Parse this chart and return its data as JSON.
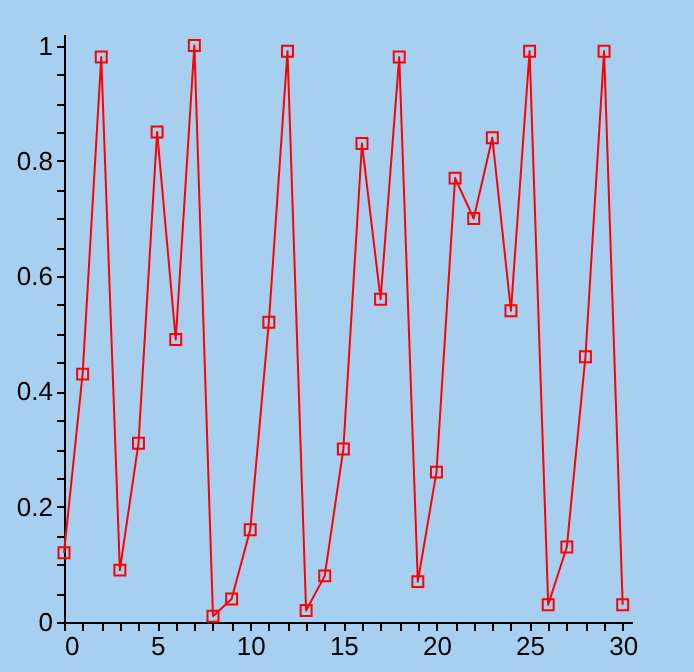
{
  "chart_data": {
    "type": "line",
    "x": [
      0,
      1,
      2,
      3,
      4,
      5,
      6,
      7,
      8,
      9,
      10,
      11,
      12,
      13,
      14,
      15,
      16,
      17,
      18,
      19,
      20,
      21,
      22,
      23,
      24,
      25,
      26,
      27,
      28,
      29,
      30
    ],
    "series": [
      {
        "color": "#ff0000",
        "values": [
          0.12,
          0.43,
          0.98,
          0.09,
          0.31,
          0.85,
          0.49,
          1.0,
          0.01,
          0.04,
          0.16,
          0.52,
          0.99,
          0.02,
          0.08,
          0.3,
          0.83,
          0.56,
          0.98,
          0.07,
          0.26,
          0.77,
          0.7,
          0.84,
          0.54,
          0.99,
          0.03,
          0.13,
          0.46,
          0.99,
          0.03
        ]
      }
    ],
    "xlim": [
      0,
      30.5
    ],
    "ylim": [
      0,
      1.02
    ],
    "xticks": [
      0,
      {
        "value": 1,
        "label": null
      },
      {
        "value": 2,
        "label": null
      },
      {
        "value": 3,
        "label": null
      },
      {
        "value": 4,
        "label": null
      },
      5,
      {
        "value": 6,
        "label": null
      },
      {
        "value": 7,
        "label": null
      },
      {
        "value": 8,
        "label": null
      },
      {
        "value": 9,
        "label": null
      },
      10,
      {
        "value": 11,
        "label": null
      },
      {
        "value": 12,
        "label": null
      },
      {
        "value": 13,
        "label": null
      },
      {
        "value": 14,
        "label": null
      },
      15,
      {
        "value": 16,
        "label": null
      },
      {
        "value": 17,
        "label": null
      },
      {
        "value": 18,
        "label": null
      },
      {
        "value": 19,
        "label": null
      },
      20,
      {
        "value": 21,
        "label": null
      },
      {
        "value": 22,
        "label": null
      },
      {
        "value": 23,
        "label": null
      },
      {
        "value": 24,
        "label": null
      },
      25,
      {
        "value": 26,
        "label": null
      },
      {
        "value": 27,
        "label": null
      },
      {
        "value": 28,
        "label": null
      },
      {
        "value": 29,
        "label": null
      },
      30
    ],
    "yticks": [
      0,
      {
        "value": 0.05,
        "label": null
      },
      {
        "value": 0.1,
        "label": null
      },
      {
        "value": 0.15,
        "label": null
      },
      0.2,
      {
        "value": 0.25,
        "label": null
      },
      {
        "value": 0.3,
        "label": null
      },
      {
        "value": 0.35,
        "label": null
      },
      0.4,
      {
        "value": 0.45,
        "label": null
      },
      {
        "value": 0.5,
        "label": null
      },
      {
        "value": 0.55,
        "label": null
      },
      0.6,
      {
        "value": 0.65,
        "label": null
      },
      {
        "value": 0.7,
        "label": null
      },
      {
        "value": 0.75,
        "label": null
      },
      0.8,
      {
        "value": 0.85,
        "label": null
      },
      {
        "value": 0.9,
        "label": null
      },
      {
        "value": 0.95,
        "label": null
      },
      1
    ],
    "marker": "square",
    "grid": false
  }
}
